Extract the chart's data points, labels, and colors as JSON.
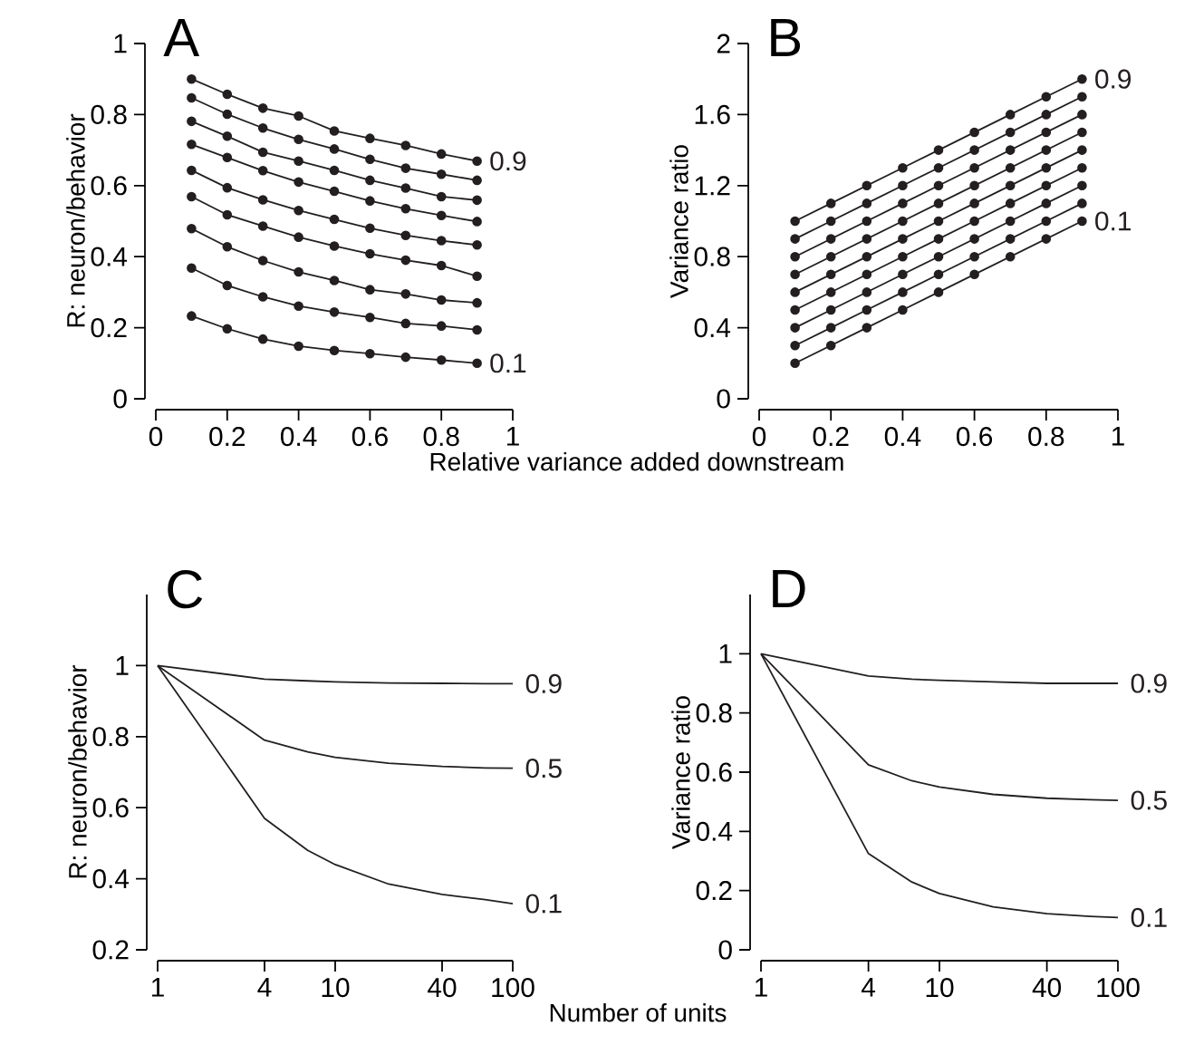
{
  "chart_data": [
    {
      "type": "line",
      "title": "A",
      "xlabel": "Relative variance added downstream",
      "ylabel": "R: neuron/behavior",
      "marker": "circle",
      "xlim": [
        0,
        1
      ],
      "ylim": [
        0,
        1
      ],
      "xticks": [
        0,
        0.2,
        0.4,
        0.6,
        0.8,
        1
      ],
      "yticks": [
        0,
        0.2,
        0.4,
        0.6,
        0.8,
        1
      ],
      "x": [
        0.1,
        0.2,
        0.3,
        0.4,
        0.5,
        0.6,
        0.7,
        0.8,
        0.9
      ],
      "series": [
        {
          "name": "0.1",
          "color": "#231f20",
          "values": [
            0.233,
            0.197,
            0.168,
            0.148,
            0.136,
            0.127,
            0.117,
            0.109,
            0.1
          ]
        },
        {
          "color": "#231f20",
          "values": [
            0.368,
            0.319,
            0.287,
            0.261,
            0.244,
            0.229,
            0.212,
            0.205,
            0.194
          ]
        },
        {
          "color": "#231f20",
          "values": [
            0.479,
            0.428,
            0.389,
            0.357,
            0.333,
            0.307,
            0.295,
            0.278,
            0.27
          ]
        },
        {
          "color": "#231f20",
          "values": [
            0.569,
            0.518,
            0.486,
            0.455,
            0.43,
            0.408,
            0.39,
            0.375,
            0.345
          ]
        },
        {
          "color": "#231f20",
          "values": [
            0.643,
            0.594,
            0.56,
            0.53,
            0.505,
            0.48,
            0.46,
            0.445,
            0.433
          ]
        },
        {
          "color": "#231f20",
          "values": [
            0.716,
            0.679,
            0.642,
            0.61,
            0.584,
            0.557,
            0.535,
            0.516,
            0.499
          ]
        },
        {
          "color": "#231f20",
          "values": [
            0.781,
            0.739,
            0.694,
            0.669,
            0.643,
            0.615,
            0.593,
            0.569,
            0.559
          ]
        },
        {
          "color": "#231f20",
          "values": [
            0.847,
            0.801,
            0.762,
            0.73,
            0.703,
            0.674,
            0.649,
            0.632,
            0.615
          ]
        },
        {
          "name": "0.9",
          "color": "#231f20",
          "values": [
            0.9,
            0.857,
            0.818,
            0.796,
            0.754,
            0.733,
            0.713,
            0.689,
            0.669
          ]
        }
      ]
    },
    {
      "type": "line",
      "title": "B",
      "ylabel": "Variance ratio",
      "marker": "circle",
      "xlim": [
        0,
        1
      ],
      "ylim": [
        0,
        2
      ],
      "xticks": [
        0,
        0.2,
        0.4,
        0.6,
        0.8,
        1
      ],
      "yticks": [
        0,
        0.4,
        0.8,
        1.2,
        1.6,
        2
      ],
      "x": [
        0.1,
        0.2,
        0.3,
        0.4,
        0.5,
        0.6,
        0.7,
        0.8,
        0.9
      ],
      "series": [
        {
          "name": "0.1",
          "color": "#231f20",
          "values": [
            0.2,
            0.3,
            0.4,
            0.5,
            0.6,
            0.7,
            0.8,
            0.9,
            1.0
          ]
        },
        {
          "color": "#231f20",
          "values": [
            0.3,
            0.4,
            0.5,
            0.6,
            0.7,
            0.8,
            0.9,
            1.0,
            1.1
          ]
        },
        {
          "color": "#231f20",
          "values": [
            0.4,
            0.5,
            0.6,
            0.7,
            0.8,
            0.9,
            1.0,
            1.1,
            1.2
          ]
        },
        {
          "color": "#231f20",
          "values": [
            0.5,
            0.6,
            0.7,
            0.8,
            0.9,
            1.0,
            1.1,
            1.2,
            1.3
          ]
        },
        {
          "color": "#231f20",
          "values": [
            0.6,
            0.7,
            0.8,
            0.9,
            1.0,
            1.1,
            1.2,
            1.3,
            1.4
          ]
        },
        {
          "color": "#231f20",
          "values": [
            0.7,
            0.8,
            0.9,
            1.0,
            1.1,
            1.2,
            1.3,
            1.4,
            1.5
          ]
        },
        {
          "color": "#231f20",
          "values": [
            0.8,
            0.9,
            1.0,
            1.1,
            1.2,
            1.3,
            1.4,
            1.5,
            1.6
          ]
        },
        {
          "color": "#231f20",
          "values": [
            0.9,
            1.0,
            1.1,
            1.2,
            1.3,
            1.4,
            1.5,
            1.6,
            1.7
          ]
        },
        {
          "name": "0.9",
          "color": "#231f20",
          "values": [
            1.0,
            1.1,
            1.2,
            1.3,
            1.4,
            1.5,
            1.6,
            1.7,
            1.8
          ]
        }
      ]
    },
    {
      "type": "line",
      "title": "C",
      "xlabel": "Number of units",
      "ylabel": "R: neuron/behavior",
      "log": "x",
      "xlim": [
        1,
        100
      ],
      "ylim": [
        0.2,
        1.2
      ],
      "xticks": [
        1,
        4,
        10,
        40,
        100
      ],
      "yticks": [
        0.2,
        0.4,
        0.6,
        0.8,
        1
      ],
      "x": [
        1,
        4,
        7,
        10,
        20,
        40,
        70,
        100
      ],
      "series": [
        {
          "name": "0.9",
          "color": "#231f20",
          "values": [
            1,
            0.962,
            0.957,
            0.954,
            0.951,
            0.95,
            0.949,
            0.949
          ]
        },
        {
          "name": "0.5",
          "color": "#231f20",
          "values": [
            1,
            0.79,
            0.757,
            0.742,
            0.725,
            0.716,
            0.712,
            0.711
          ]
        },
        {
          "name": "0.1",
          "color": "#231f20",
          "values": [
            1,
            0.57,
            0.48,
            0.44,
            0.385,
            0.356,
            0.341,
            0.33
          ]
        }
      ]
    },
    {
      "type": "line",
      "title": "D",
      "ylabel": "Variance ratio",
      "log": "x",
      "xlim": [
        1,
        100
      ],
      "ylim": [
        0,
        1.2
      ],
      "xticks": [
        1,
        4,
        10,
        40,
        100
      ],
      "yticks": [
        0,
        0.2,
        0.4,
        0.6,
        0.8,
        1
      ],
      "x": [
        1,
        4,
        7,
        10,
        20,
        40,
        70,
        100
      ],
      "series": [
        {
          "name": "0.9",
          "color": "#231f20",
          "values": [
            1,
            0.925,
            0.914,
            0.91,
            0.905,
            0.9,
            0.9,
            0.9
          ]
        },
        {
          "name": "0.5",
          "color": "#231f20",
          "values": [
            1,
            0.625,
            0.571,
            0.55,
            0.525,
            0.512,
            0.507,
            0.505
          ]
        },
        {
          "name": "0.1",
          "color": "#231f20",
          "values": [
            1,
            0.325,
            0.229,
            0.19,
            0.145,
            0.122,
            0.113,
            0.109
          ]
        }
      ]
    }
  ]
}
